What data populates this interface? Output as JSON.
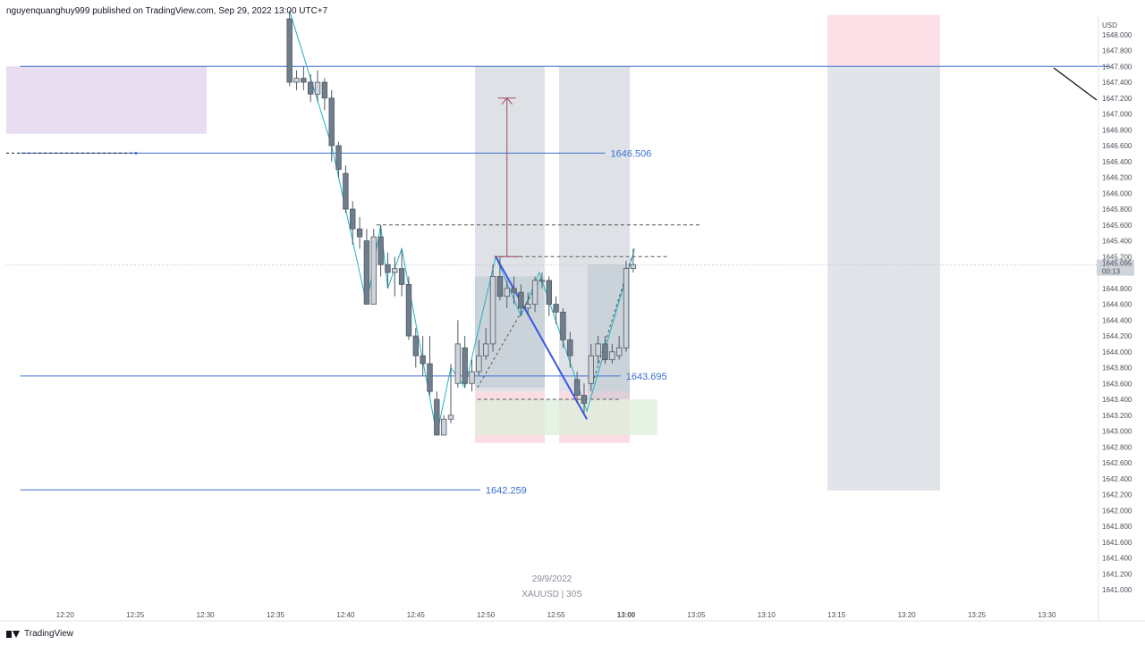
{
  "header": {
    "publisher_line": "nguyenquanghuy999 published on TradingView.com, Sep 29, 2022 13:00 UTC+7"
  },
  "footer": {
    "brand": "TradingView"
  },
  "watermark": {
    "date": "29/9/2022",
    "symbol": "XAUUSD | 30S"
  },
  "chart_data": {
    "type": "candlestick",
    "symbol": "XAUUSD",
    "interval": "30S",
    "currency": "USD",
    "ylim": [
      1640.9,
      1648.25
    ],
    "x_ticks": [
      "12:20",
      "12:25",
      "12:30",
      "12:35",
      "12:40",
      "12:45",
      "12:50",
      "12:55",
      "13:00",
      "13:05",
      "13:10",
      "13:15",
      "13:20",
      "13:25",
      "13:30"
    ],
    "x_tick_minutes": [
      20,
      25,
      30,
      35,
      40,
      45,
      50,
      55,
      60,
      65,
      70,
      75,
      80,
      85,
      90
    ],
    "x_bold_tick": "13:00",
    "y_ticks": [
      1648.0,
      1647.8,
      1647.6,
      1647.4,
      1647.2,
      1647.0,
      1646.8,
      1646.6,
      1646.4,
      1646.2,
      1646.0,
      1645.8,
      1645.6,
      1645.4,
      1645.2,
      1645.0,
      1644.8,
      1644.6,
      1644.4,
      1644.2,
      1644.0,
      1643.8,
      1643.6,
      1643.4,
      1643.2,
      1643.0,
      1642.8,
      1642.6,
      1642.4,
      1642.2,
      1642.0,
      1641.8,
      1641.6,
      1641.4,
      1641.2,
      1641.0
    ],
    "current_price": {
      "label": "1645.095",
      "value": 1645.095,
      "countdown": "00:13"
    },
    "levels": [
      {
        "label": "1647.6",
        "value": 1647.6,
        "label_visible": false,
        "x_start_min": 16.8,
        "x_end_min": 94.5
      },
      {
        "label": "1646.506",
        "value": 1646.506,
        "label_visible": true,
        "x_start_min": 16.8,
        "x_end_min": 58.5
      },
      {
        "label": "1643.695",
        "value": 1643.695,
        "label_visible": true,
        "x_start_min": 16.8,
        "x_end_min": 59.6
      },
      {
        "label": "1642.259",
        "value": 1642.259,
        "label_visible": true,
        "x_start_min": 16.8,
        "x_end_min": 49.6
      }
    ],
    "candles": [
      {
        "t": 36.0,
        "o": 1648.2,
        "h": 1648.3,
        "c": 1647.4,
        "l": 1647.35
      },
      {
        "t": 36.5,
        "o": 1647.4,
        "h": 1647.55,
        "c": 1647.45,
        "l": 1647.3
      },
      {
        "t": 37.0,
        "o": 1647.45,
        "h": 1647.6,
        "c": 1647.4,
        "l": 1647.3
      },
      {
        "t": 37.5,
        "o": 1647.4,
        "h": 1647.5,
        "c": 1647.25,
        "l": 1647.15
      },
      {
        "t": 38.0,
        "o": 1647.25,
        "h": 1647.55,
        "c": 1647.4,
        "l": 1647.15
      },
      {
        "t": 38.5,
        "o": 1647.4,
        "h": 1647.45,
        "c": 1647.2,
        "l": 1647.05
      },
      {
        "t": 39.0,
        "o": 1647.2,
        "h": 1647.3,
        "c": 1646.6,
        "l": 1646.4
      },
      {
        "t": 39.5,
        "o": 1646.6,
        "h": 1646.65,
        "c": 1646.3,
        "l": 1646.2
      },
      {
        "t": 40.0,
        "o": 1646.25,
        "h": 1646.35,
        "c": 1645.8,
        "l": 1645.75
      },
      {
        "t": 40.5,
        "o": 1645.8,
        "h": 1645.9,
        "c": 1645.55,
        "l": 1645.35
      },
      {
        "t": 41.0,
        "o": 1645.55,
        "h": 1645.7,
        "c": 1645.45,
        "l": 1645.3
      },
      {
        "t": 41.5,
        "o": 1645.4,
        "h": 1645.55,
        "c": 1644.6,
        "l": 1644.6
      },
      {
        "t": 42.0,
        "o": 1644.6,
        "h": 1645.55,
        "c": 1645.45,
        "l": 1644.6
      },
      {
        "t": 42.5,
        "o": 1645.45,
        "h": 1645.6,
        "c": 1645.1,
        "l": 1644.95
      },
      {
        "t": 43.0,
        "o": 1645.1,
        "h": 1645.25,
        "c": 1645.0,
        "l": 1644.8
      },
      {
        "t": 43.5,
        "o": 1645.0,
        "h": 1645.2,
        "c": 1645.05,
        "l": 1644.7
      },
      {
        "t": 44.0,
        "o": 1645.05,
        "h": 1645.3,
        "c": 1644.85,
        "l": 1644.7
      },
      {
        "t": 44.5,
        "o": 1644.85,
        "h": 1644.95,
        "c": 1644.2,
        "l": 1644.15
      },
      {
        "t": 45.0,
        "o": 1644.2,
        "h": 1644.3,
        "c": 1643.95,
        "l": 1643.8
      },
      {
        "t": 45.5,
        "o": 1643.95,
        "h": 1644.2,
        "c": 1643.85,
        "l": 1643.7
      },
      {
        "t": 46.0,
        "o": 1643.85,
        "h": 1644.2,
        "c": 1643.5,
        "l": 1643.45
      },
      {
        "t": 46.5,
        "o": 1643.4,
        "h": 1643.5,
        "c": 1642.95,
        "l": 1642.95
      },
      {
        "t": 47.0,
        "o": 1642.95,
        "h": 1643.2,
        "c": 1643.15,
        "l": 1642.95
      },
      {
        "t": 47.5,
        "o": 1643.15,
        "h": 1643.85,
        "c": 1643.2,
        "l": 1643.1
      },
      {
        "t": 48.0,
        "o": 1643.6,
        "h": 1644.4,
        "c": 1644.1,
        "l": 1643.55
      },
      {
        "t": 48.5,
        "o": 1644.05,
        "h": 1644.2,
        "c": 1643.6,
        "l": 1643.55
      },
      {
        "t": 49.0,
        "o": 1643.6,
        "h": 1643.9,
        "c": 1643.75,
        "l": 1643.5
      },
      {
        "t": 49.5,
        "o": 1643.75,
        "h": 1644.15,
        "c": 1643.95,
        "l": 1643.7
      },
      {
        "t": 50.0,
        "o": 1643.95,
        "h": 1644.3,
        "c": 1644.1,
        "l": 1643.9
      },
      {
        "t": 50.5,
        "o": 1644.1,
        "h": 1645.1,
        "c": 1644.95,
        "l": 1644.0
      },
      {
        "t": 51.0,
        "o": 1644.95,
        "h": 1645.2,
        "c": 1644.7,
        "l": 1644.65
      },
      {
        "t": 51.5,
        "o": 1644.7,
        "h": 1644.9,
        "c": 1644.8,
        "l": 1644.55
      },
      {
        "t": 52.0,
        "o": 1644.8,
        "h": 1644.95,
        "c": 1644.75,
        "l": 1644.6
      },
      {
        "t": 52.5,
        "o": 1644.75,
        "h": 1644.85,
        "c": 1644.55,
        "l": 1644.45
      },
      {
        "t": 53.0,
        "o": 1644.55,
        "h": 1644.75,
        "c": 1644.6,
        "l": 1644.45
      },
      {
        "t": 53.5,
        "o": 1644.6,
        "h": 1644.95,
        "c": 1644.9,
        "l": 1644.5
      },
      {
        "t": 54.0,
        "o": 1644.9,
        "h": 1645.0,
        "c": 1644.9,
        "l": 1644.8
      },
      {
        "t": 54.5,
        "o": 1644.9,
        "h": 1644.95,
        "c": 1644.6,
        "l": 1644.45
      },
      {
        "t": 55.0,
        "o": 1644.6,
        "h": 1644.7,
        "c": 1644.5,
        "l": 1644.35
      },
      {
        "t": 55.5,
        "o": 1644.5,
        "h": 1644.55,
        "c": 1644.15,
        "l": 1644.05
      },
      {
        "t": 56.0,
        "o": 1644.15,
        "h": 1644.25,
        "c": 1643.95,
        "l": 1643.8
      },
      {
        "t": 56.5,
        "o": 1643.65,
        "h": 1643.75,
        "c": 1643.45,
        "l": 1643.35
      },
      {
        "t": 57.0,
        "o": 1643.45,
        "h": 1643.6,
        "c": 1643.35,
        "l": 1643.2
      },
      {
        "t": 57.5,
        "o": 1643.6,
        "h": 1644.1,
        "c": 1643.95,
        "l": 1643.5
      },
      {
        "t": 58.0,
        "o": 1643.95,
        "h": 1644.2,
        "c": 1644.1,
        "l": 1643.85
      },
      {
        "t": 58.5,
        "o": 1644.1,
        "h": 1644.2,
        "c": 1643.9,
        "l": 1643.85
      },
      {
        "t": 59.0,
        "o": 1643.9,
        "h": 1644.1,
        "c": 1644.0,
        "l": 1643.85
      },
      {
        "t": 59.5,
        "o": 1643.95,
        "h": 1644.2,
        "c": 1644.05,
        "l": 1643.9
      },
      {
        "t": 60.0,
        "o": 1644.05,
        "h": 1645.15,
        "c": 1645.05,
        "l": 1644.0
      },
      {
        "t": 60.5,
        "o": 1645.05,
        "h": 1645.3,
        "c": 1645.1,
        "l": 1645.0
      }
    ],
    "colors": {
      "bear": "#6f7d8c",
      "bull": "#cfd3da",
      "level": "#3d6fd1",
      "zigzag": "#20b2c0",
      "leg": "#3a55e8",
      "target": "#9c4b63"
    }
  }
}
